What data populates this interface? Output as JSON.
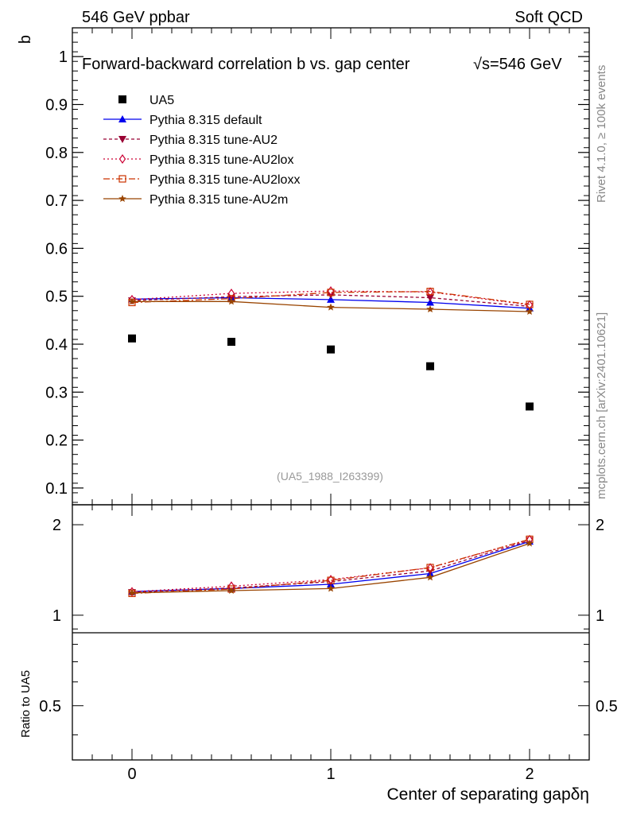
{
  "header": {
    "left": "546 GeV ppbar",
    "right": "Soft QCD"
  },
  "side_text": {
    "rivet": "Rivet 4.1.0, ≥ 100k events",
    "mcplots": "mcplots.cern.ch [arXiv:2401.10621]"
  },
  "chart_data": {
    "type": "line",
    "title": "Forward-backward correlation b  vs. gap center",
    "title_energy": "√s=546 GeV",
    "xlabel": "Center of separating gapδη",
    "ylabel": "b",
    "ratio_ylabel": "Ratio to UA5",
    "analysis_tag": "(UA5_1988_I263399)",
    "xlim": [
      -0.3,
      2.3
    ],
    "ylim": [
      0.065,
      1.06
    ],
    "ratio_ylim": [
      0.33,
      2.33
    ],
    "x_ticks": [
      "0",
      "1",
      "2"
    ],
    "y_ticks": [
      "0.1",
      "0.2",
      "0.3",
      "0.4",
      "0.5",
      "0.6",
      "0.7",
      "0.8",
      "0.9",
      "1"
    ],
    "ratio_ticks": [
      "0.5",
      "1",
      "2"
    ],
    "x": [
      0,
      0.5,
      1,
      1.5,
      2
    ],
    "data": {
      "name": "UA5",
      "values": [
        0.412,
        0.405,
        0.389,
        0.354,
        0.27
      ]
    },
    "series": [
      {
        "name": "Pythia 8.315 default",
        "color": "#0000ee",
        "dash": "none",
        "marker": "triangle-up",
        "values": [
          0.494,
          0.497,
          0.493,
          0.487,
          0.475
        ]
      },
      {
        "name": "Pythia 8.315 tune-AU2",
        "color": "#990033",
        "dash": "4,3",
        "marker": "triangle-down",
        "values": [
          0.491,
          0.499,
          0.503,
          0.497,
          0.479
        ]
      },
      {
        "name": "Pythia 8.315 tune-AU2lox",
        "color": "#cc0033",
        "dash": "2,3",
        "marker": "diamond",
        "values": [
          0.493,
          0.506,
          0.511,
          0.509,
          0.482
        ]
      },
      {
        "name": "Pythia 8.315 tune-AU2loxx",
        "color": "#cc3300",
        "dash": "8,3,2,3",
        "marker": "square-open",
        "values": [
          0.487,
          0.495,
          0.508,
          0.51,
          0.483
        ]
      },
      {
        "name": "Pythia 8.315 tune-AU2m",
        "color": "#994400",
        "dash": "none",
        "marker": "star",
        "values": [
          0.489,
          0.489,
          0.477,
          0.473,
          0.468
        ]
      }
    ]
  }
}
